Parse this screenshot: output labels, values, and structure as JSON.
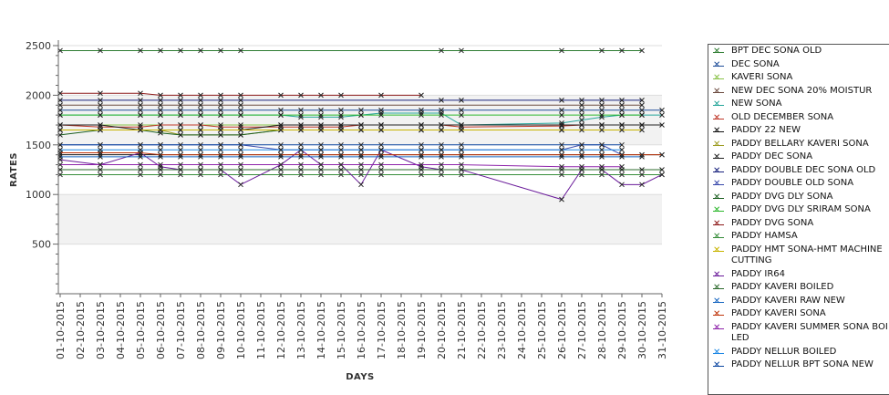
{
  "chart_data": {
    "type": "line",
    "xlabel": "DAYS",
    "ylabel": "RATES",
    "ylim": [
      0,
      2500
    ],
    "yticks": [
      500,
      1000,
      1500,
      2000,
      2500
    ],
    "grid": "alternating horizontal bands",
    "legend_position": "right",
    "categories": [
      "01-10-2015",
      "02-10-2015",
      "03-10-2015",
      "04-10-2015",
      "05-10-2015",
      "06-10-2015",
      "07-10-2015",
      "08-10-2015",
      "09-10-2015",
      "10-10-2015",
      "11-10-2015",
      "12-10-2015",
      "13-10-2015",
      "14-10-2015",
      "15-10-2015",
      "16-10-2015",
      "17-10-2015",
      "18-10-2015",
      "19-10-2015",
      "20-10-2015",
      "21-10-2015",
      "22-10-2015",
      "23-10-2015",
      "24-10-2015",
      "25-10-2015",
      "26-10-2015",
      "27-10-2015",
      "28-10-2015",
      "29-10-2015",
      "30-10-2015",
      "31-10-2015"
    ],
    "series": [
      {
        "name": "BPT DEC SONA OLD",
        "color": "#2e7d32",
        "values": [
          2450,
          null,
          2450,
          null,
          2450,
          2450,
          2450,
          2450,
          2450,
          2450,
          null,
          null,
          null,
          null,
          null,
          null,
          null,
          null,
          null,
          2450,
          2450,
          null,
          null,
          null,
          null,
          2450,
          null,
          2450,
          2450,
          2450,
          null
        ]
      },
      {
        "name": "DEC SONA",
        "color": "#1f4e99",
        "values": [
          1850,
          null,
          1850,
          null,
          1850,
          1850,
          1850,
          1850,
          1850,
          1850,
          null,
          1850,
          1850,
          1850,
          1850,
          1850,
          1850,
          null,
          1850,
          1850,
          1850,
          null,
          null,
          null,
          null,
          1850,
          1850,
          1850,
          1850,
          1850,
          1850
        ]
      },
      {
        "name": "KAVERI SONA",
        "color": "#8bc34a",
        "values": [
          1700,
          null,
          1700,
          null,
          1700,
          1700,
          1700,
          1700,
          1700,
          1700,
          null,
          1700,
          1700,
          1700,
          1700,
          1700,
          1700,
          null,
          1700,
          1700,
          1700,
          null,
          null,
          null,
          null,
          1700,
          1700,
          1700,
          1700,
          1700,
          null
        ]
      },
      {
        "name": "NEW DEC SONA 20% MOISTUR",
        "color": "#6d4c41",
        "values": [
          1900,
          null,
          1900,
          null,
          1900,
          1900,
          1900,
          1900,
          1900,
          1900,
          null,
          null,
          null,
          null,
          null,
          null,
          null,
          null,
          null,
          null,
          null,
          null,
          null,
          null,
          null,
          null,
          1900,
          1900,
          1900,
          1900,
          null
        ]
      },
      {
        "name": "NEW SONA",
        "color": "#26a69a",
        "values": [
          1800,
          null,
          1800,
          null,
          1800,
          1800,
          1800,
          1800,
          1800,
          1800,
          null,
          1800,
          1780,
          1780,
          1780,
          1800,
          1820,
          null,
          1820,
          1820,
          1700,
          null,
          null,
          null,
          null,
          1720,
          1750,
          1780,
          1800,
          1800,
          1800
        ]
      },
      {
        "name": "OLD DECEMBER SONA",
        "color": "#c0392b",
        "values": [
          1700,
          null,
          1680,
          null,
          1680,
          1700,
          1700,
          1700,
          1680,
          1680,
          null,
          1680,
          1680,
          1680,
          1680,
          1700,
          1700,
          null,
          1700,
          1700,
          1680,
          null,
          null,
          null,
          null,
          1690,
          1700,
          1700,
          1700,
          1700,
          null
        ]
      },
      {
        "name": "PADDY 22 NEW",
        "color": "#111111",
        "values": [
          1400,
          null,
          1400,
          null,
          1400,
          1400,
          1400,
          1400,
          1400,
          1400,
          null,
          1400,
          1400,
          1400,
          1400,
          1400,
          1400,
          null,
          1400,
          1400,
          1400,
          null,
          null,
          null,
          null,
          1400,
          1400,
          1400,
          1400,
          1400,
          1400
        ]
      },
      {
        "name": "PADDY BELLARY KAVERI SONA",
        "color": "#9e9d24",
        "values": [
          1650,
          null,
          1650,
          null,
          1650,
          1650,
          1600,
          1600,
          1600,
          1600,
          null,
          1650,
          1650,
          1650,
          1650,
          1650,
          1650,
          null,
          1650,
          1650,
          1650,
          null,
          null,
          null,
          null,
          1650,
          null,
          null,
          null,
          null,
          null
        ]
      },
      {
        "name": "PADDY DEC SONA",
        "color": "#222222",
        "values": [
          1700,
          null,
          1700,
          null,
          1650,
          1650,
          1650,
          1650,
          1650,
          1650,
          null,
          1700,
          1700,
          1700,
          1700,
          1700,
          1700,
          null,
          1700,
          1700,
          1700,
          null,
          null,
          null,
          null,
          1700,
          1700,
          1700,
          1700,
          1700,
          1700
        ]
      },
      {
        "name": "PADDY DOUBLE DEC SONA OLD",
        "color": "#1a237e",
        "values": [
          1950,
          null,
          1950,
          null,
          1950,
          1950,
          1950,
          1950,
          1950,
          1950,
          null,
          null,
          null,
          null,
          null,
          null,
          null,
          null,
          null,
          1950,
          1950,
          null,
          null,
          null,
          null,
          1950,
          1950,
          1950,
          1950,
          1950,
          null
        ]
      },
      {
        "name": "PADDY DOUBLE OLD SONA",
        "color": "#3949ab",
        "values": [
          1500,
          null,
          1500,
          null,
          1500,
          1500,
          null,
          null,
          1500,
          1500,
          null,
          1450,
          1450,
          1450,
          null,
          1450,
          1450,
          null,
          1450,
          1450,
          1450,
          null,
          null,
          null,
          null,
          1450,
          1500,
          1500,
          1400,
          null,
          null
        ]
      },
      {
        "name": "PADDY DVG DLY SONA",
        "color": "#1b5e20",
        "values": [
          1600,
          null,
          1650,
          null,
          1650,
          1620,
          1600,
          1600,
          1600,
          1600,
          null,
          1650,
          1650,
          1650,
          1650,
          1650,
          1650,
          null,
          1650,
          1650,
          1650,
          null,
          null,
          null,
          null,
          1650,
          null,
          null,
          null,
          null,
          null
        ]
      },
      {
        "name": "PADDY DVG DLY SRIRAM SONA",
        "color": "#2eb82e",
        "values": [
          1800,
          null,
          1800,
          null,
          1800,
          1800,
          1800,
          1800,
          1800,
          1800,
          null,
          1800,
          1800,
          1800,
          1800,
          1800,
          1800,
          null,
          1800,
          1800,
          1800,
          null,
          null,
          null,
          null,
          1800,
          1800,
          1800,
          1800,
          1800,
          null
        ]
      },
      {
        "name": "PADDY DVG SONA",
        "color": "#8e1b1b",
        "values": [
          2020,
          null,
          2020,
          null,
          2020,
          2000,
          2000,
          2000,
          2000,
          2000,
          null,
          2000,
          2000,
          2000,
          2000,
          null,
          2000,
          null,
          2000,
          null,
          null,
          null,
          null,
          null,
          null,
          null,
          null,
          null,
          null,
          null,
          null
        ]
      },
      {
        "name": "PADDY HAMSA",
        "color": "#388e3c",
        "values": [
          1200,
          null,
          1200,
          null,
          1200,
          1200,
          1200,
          1200,
          1200,
          1200,
          null,
          1200,
          1200,
          1200,
          1200,
          1200,
          1200,
          null,
          1200,
          1200,
          1200,
          null,
          null,
          null,
          null,
          1200,
          1200,
          1200,
          1200,
          1200,
          1200
        ]
      },
      {
        "name": "PADDY HMT SONA-HMT MACHINE CUTTING",
        "color": "#c8b400",
        "values": [
          1650,
          null,
          1650,
          null,
          1650,
          1650,
          1650,
          1650,
          1650,
          1650,
          null,
          1650,
          1650,
          1650,
          1650,
          1650,
          1650,
          null,
          1650,
          1650,
          1650,
          null,
          null,
          null,
          null,
          1650,
          1650,
          1650,
          1650,
          1650,
          null
        ]
      },
      {
        "name": "PADDY IR64",
        "color": "#6a1b9a",
        "values": [
          1350,
          null,
          1300,
          null,
          1420,
          1280,
          1250,
          1250,
          1250,
          1100,
          null,
          1300,
          1450,
          1300,
          1300,
          1100,
          1450,
          null,
          1280,
          1250,
          1250,
          null,
          null,
          null,
          null,
          950,
          1250,
          1250,
          1100,
          1100,
          1200
        ]
      },
      {
        "name": "PADDY KAVERI BOILED",
        "color": "#2e6b2e",
        "values": [
          1250,
          null,
          1250,
          null,
          1250,
          1250,
          1250,
          1250,
          1250,
          1250,
          null,
          1250,
          1250,
          1250,
          1250,
          1250,
          1250,
          null,
          1250,
          1250,
          1250,
          null,
          null,
          null,
          null,
          1250,
          1250,
          1250,
          1250,
          1250,
          1250
        ]
      },
      {
        "name": "PADDY KAVERI RAW NEW",
        "color": "#1565c0",
        "values": [
          1380,
          null,
          1380,
          null,
          1380,
          1380,
          1380,
          1380,
          1380,
          1380,
          null,
          1380,
          1380,
          1380,
          1380,
          1380,
          1380,
          null,
          1380,
          1380,
          1380,
          null,
          null,
          null,
          null,
          1380,
          1380,
          1380,
          1380,
          1380,
          null
        ]
      },
      {
        "name": "PADDY KAVERI SONA",
        "color": "#bf360c",
        "values": [
          1420,
          null,
          1420,
          null,
          1420,
          1400,
          1400,
          1400,
          1400,
          1400,
          null,
          1400,
          1400,
          1400,
          1400,
          1400,
          1400,
          null,
          1400,
          1400,
          1400,
          null,
          null,
          null,
          null,
          1400,
          1400,
          1400,
          1400,
          1400,
          1400
        ]
      },
      {
        "name": "PADDY KAVERI SUMMER SONA BOILED",
        "color": "#8e24aa",
        "values": [
          1300,
          null,
          1300,
          null,
          1300,
          1300,
          1300,
          1300,
          1300,
          1300,
          null,
          1300,
          1300,
          1300,
          1300,
          1300,
          1300,
          null,
          1300,
          1300,
          1300,
          null,
          null,
          null,
          null,
          1280,
          1280,
          1280,
          1280,
          null,
          null
        ]
      },
      {
        "name": "PADDY NELLUR BOILED",
        "color": "#1e88e5",
        "values": [
          1450,
          null,
          1450,
          null,
          1450,
          1450,
          1450,
          1450,
          1450,
          1450,
          null,
          1450,
          1450,
          1450,
          1450,
          1450,
          1450,
          null,
          1450,
          1450,
          1450,
          null,
          null,
          null,
          null,
          1450,
          1450,
          1450,
          1450,
          null,
          null
        ]
      },
      {
        "name": "PADDY NELLUR BPT SONA NEW",
        "color": "#0d47a1",
        "values": [
          1500,
          null,
          1500,
          null,
          1500,
          1500,
          1500,
          1500,
          1500,
          1500,
          null,
          1500,
          1500,
          1500,
          1500,
          1500,
          1500,
          null,
          1500,
          1500,
          1500,
          null,
          null,
          null,
          null,
          1500,
          1500,
          1500,
          1500,
          null,
          null
        ]
      }
    ]
  }
}
